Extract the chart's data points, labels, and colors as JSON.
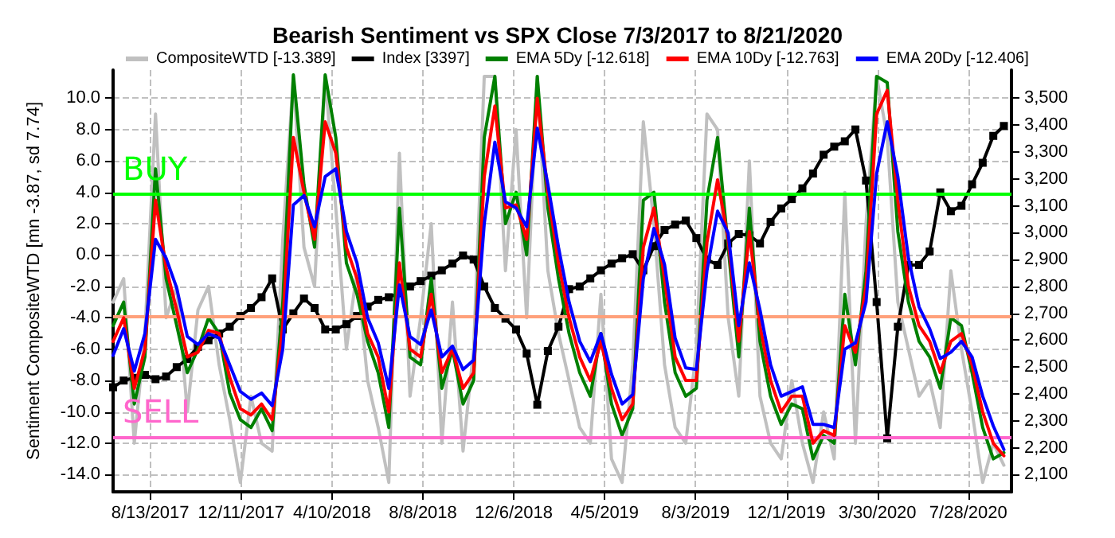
{
  "chart_data": {
    "type": "line",
    "title": "Bearish Sentiment vs SPX Close 7/3/2017 to 8/21/2020",
    "ylabel": "Sentiment CompositeWTD [mn -3.87, sd 7.74]",
    "x": [
      "2017-06-25",
      "2017-07-09",
      "2017-07-23",
      "2017-08-06",
      "2017-08-20",
      "2017-09-03",
      "2017-09-17",
      "2017-10-01",
      "2017-10-15",
      "2017-10-29",
      "2017-11-12",
      "2017-11-26",
      "2017-12-10",
      "2017-12-24",
      "2018-01-07",
      "2018-01-21",
      "2018-02-04",
      "2018-02-18",
      "2018-03-04",
      "2018-03-18",
      "2018-04-01",
      "2018-04-15",
      "2018-04-29",
      "2018-05-13",
      "2018-05-27",
      "2018-06-10",
      "2018-06-24",
      "2018-07-08",
      "2018-07-22",
      "2018-08-05",
      "2018-08-19",
      "2018-09-02",
      "2018-09-16",
      "2018-09-30",
      "2018-10-14",
      "2018-10-28",
      "2018-11-11",
      "2018-11-25",
      "2018-12-09",
      "2018-12-23",
      "2019-01-06",
      "2019-01-20",
      "2019-02-03",
      "2019-02-17",
      "2019-03-03",
      "2019-03-17",
      "2019-03-31",
      "2019-04-14",
      "2019-04-28",
      "2019-05-12",
      "2019-05-26",
      "2019-06-09",
      "2019-06-23",
      "2019-07-07",
      "2019-07-21",
      "2019-08-04",
      "2019-08-18",
      "2019-09-01",
      "2019-09-15",
      "2019-09-29",
      "2019-10-13",
      "2019-10-27",
      "2019-11-10",
      "2019-11-24",
      "2019-12-08",
      "2019-12-22",
      "2020-01-05",
      "2020-01-19",
      "2020-02-02",
      "2020-02-16",
      "2020-03-01",
      "2020-03-15",
      "2020-03-29",
      "2020-04-12",
      "2020-04-26",
      "2020-05-10",
      "2020-05-24",
      "2020-06-07",
      "2020-06-21",
      "2020-07-05",
      "2020-07-19",
      "2020-08-02",
      "2020-08-16",
      "2020-08-30",
      "2020-09-13"
    ],
    "series": [
      {
        "name": "CompositeWTD [-13.389]",
        "color": "#c0c0c0",
        "values": [
          -3.0,
          -1.5,
          -12.0,
          -5.0,
          9.0,
          -4.0,
          -2.0,
          -10.0,
          -3.5,
          -2.0,
          -7.0,
          -10.5,
          -14.5,
          -9.0,
          -12.0,
          -12.5,
          1.0,
          11.4,
          0.5,
          -2.0,
          11.4,
          3.0,
          -6.0,
          -1.0,
          -8.0,
          -11.0,
          -14.5,
          6.5,
          -9.0,
          -4.0,
          2.0,
          -12.0,
          -3.0,
          -12.5,
          -6.0,
          11.4,
          11.4,
          -1.0,
          8.0,
          -4.0,
          11.4,
          -1.0,
          -5.0,
          -8.0,
          -11.0,
          -12.0,
          -2.5,
          -13.0,
          -14.5,
          -7.0,
          8.5,
          2.0,
          -7.0,
          -11.0,
          -12.0,
          -6.0,
          9.0,
          8.0,
          -4.0,
          -9.0,
          6.0,
          -9.0,
          -12.0,
          -13.0,
          -8.0,
          -12.0,
          -14.5,
          -10.0,
          -13.0,
          4.0,
          -12.0,
          2.0,
          11.4,
          7.5,
          -3.0,
          -6.0,
          -9.0,
          -8.0,
          -11.0,
          -1.0,
          -6.0,
          -10.0,
          -14.5,
          -12.0,
          -13.4
        ]
      },
      {
        "name": "Index [3397]",
        "color": "#000000",
        "axis": "y2",
        "marker": "square",
        "values": [
          2425,
          2450,
          2460,
          2471,
          2455,
          2465,
          2500,
          2530,
          2575,
          2600,
          2625,
          2650,
          2690,
          2720,
          2760,
          2830,
          2640,
          2700,
          2755,
          2720,
          2640,
          2640,
          2660,
          2690,
          2725,
          2750,
          2760,
          2775,
          2800,
          2820,
          2840,
          2860,
          2885,
          2915,
          2900,
          2800,
          2720,
          2680,
          2640,
          2550,
          2360,
          2560,
          2650,
          2790,
          2800,
          2830,
          2860,
          2885,
          2905,
          2920,
          2860,
          2950,
          3010,
          3030,
          3045,
          2980,
          2900,
          2880,
          2960,
          2995,
          2990,
          2960,
          3040,
          3090,
          3125,
          3165,
          3220,
          3290,
          3320,
          3340,
          3384,
          3194,
          2742,
          2235,
          2650,
          2880,
          2880,
          2930,
          3150,
          3080,
          3100,
          3180,
          3260,
          3360,
          3397
        ]
      },
      {
        "name": "EMA 5Dy [-12.618]",
        "color": "#008000",
        "values": [
          -4.5,
          -3.0,
          -9.5,
          -6.5,
          5.5,
          -1.5,
          -4.5,
          -7.5,
          -6.0,
          -4.0,
          -5.0,
          -8.8,
          -10.5,
          -11.0,
          -9.8,
          -11.2,
          -3.0,
          11.5,
          4.5,
          0.5,
          11.5,
          7.5,
          -0.5,
          -2.5,
          -5.5,
          -7.5,
          -11.0,
          3.0,
          -6.5,
          -7.0,
          -1.5,
          -8.5,
          -6.0,
          -9.5,
          -8.0,
          7.5,
          11.4,
          2.0,
          4.0,
          0.0,
          11.4,
          3.0,
          -1.5,
          -5.0,
          -7.5,
          -9.0,
          -5.0,
          -9.5,
          -11.5,
          -9.8,
          3.5,
          4.0,
          -3.0,
          -7.5,
          -9.0,
          -8.5,
          3.5,
          7.5,
          0.5,
          -6.5,
          3.0,
          -5.5,
          -9.0,
          -10.8,
          -9.5,
          -9.8,
          -13.0,
          -11.5,
          -12.0,
          -2.5,
          -7.0,
          -1.0,
          11.4,
          11.0,
          1.5,
          -3.0,
          -5.5,
          -6.5,
          -8.5,
          -4.0,
          -4.5,
          -7.5,
          -11.0,
          -13.0,
          -12.6
        ]
      },
      {
        "name": "EMA 10Dy [-12.763]",
        "color": "#ff0000",
        "values": [
          -5.5,
          -4.0,
          -8.5,
          -6.0,
          3.5,
          -0.8,
          -3.5,
          -6.5,
          -6.2,
          -4.8,
          -5.0,
          -7.8,
          -9.8,
          -10.2,
          -9.5,
          -10.5,
          -4.5,
          7.5,
          4.0,
          1.0,
          8.5,
          6.5,
          0.5,
          -1.5,
          -5.0,
          -6.5,
          -10.0,
          -0.5,
          -6.0,
          -6.5,
          -2.5,
          -7.5,
          -6.0,
          -8.5,
          -7.5,
          5.0,
          9.5,
          3.0,
          3.2,
          1.0,
          10.0,
          4.0,
          -0.5,
          -4.0,
          -6.5,
          -8.0,
          -5.5,
          -8.5,
          -10.5,
          -9.5,
          0.5,
          3.0,
          -1.5,
          -6.5,
          -8.0,
          -8.0,
          0.8,
          4.8,
          1.0,
          -5.5,
          1.5,
          -4.5,
          -8.0,
          -10.0,
          -9.0,
          -9.0,
          -12.0,
          -11.2,
          -11.5,
          -4.5,
          -6.2,
          -2.0,
          9.0,
          10.5,
          3.5,
          -2.0,
          -4.5,
          -5.5,
          -7.5,
          -5.5,
          -5.0,
          -7.0,
          -10.0,
          -12.0,
          -12.8
        ]
      },
      {
        "name": "EMA 20Dy [-12.406]",
        "color": "#0000ff",
        "values": [
          -6.4,
          -4.7,
          -7.4,
          -5.0,
          1.0,
          -0.2,
          -2.1,
          -5.2,
          -5.7,
          -5.0,
          -5.3,
          -7.0,
          -8.7,
          -9.2,
          -8.8,
          -9.6,
          -6.0,
          3.2,
          3.8,
          1.8,
          5.0,
          5.5,
          1.5,
          -0.5,
          -4.0,
          -5.6,
          -8.5,
          -1.9,
          -5.2,
          -5.7,
          -3.5,
          -6.5,
          -5.8,
          -7.3,
          -6.7,
          2.0,
          7.2,
          3.4,
          3.0,
          1.8,
          8.1,
          4.5,
          0.5,
          -3.0,
          -5.5,
          -6.8,
          -5.0,
          -7.6,
          -9.5,
          -8.9,
          -1.5,
          1.7,
          -0.6,
          -5.3,
          -7.2,
          -7.3,
          -1.0,
          2.8,
          1.4,
          -4.5,
          -0.5,
          -3.5,
          -7.0,
          -9.0,
          -8.7,
          -8.4,
          -10.8,
          -10.8,
          -11.0,
          -6.0,
          -5.6,
          -3.0,
          5.2,
          8.5,
          5.0,
          -0.2,
          -3.3,
          -4.7,
          -6.6,
          -6.2,
          -5.5,
          -6.5,
          -9.0,
          -10.9,
          -12.4
        ]
      }
    ],
    "ylim": [
      -15.1,
      11.8
    ],
    "yticks": [
      {
        "value": -14,
        "label": "-14.0"
      },
      {
        "value": -12,
        "label": "-12.0"
      },
      {
        "value": -10,
        "label": "-10.0"
      },
      {
        "value": -8,
        "label": "-8.0"
      },
      {
        "value": -6,
        "label": "-6.0"
      },
      {
        "value": -4,
        "label": "-4.0"
      },
      {
        "value": -2,
        "label": "-2.0"
      },
      {
        "value": 0,
        "label": "0.0"
      },
      {
        "value": 2,
        "label": "2.0"
      },
      {
        "value": 4,
        "label": "4.0"
      },
      {
        "value": 6,
        "label": "6.0"
      },
      {
        "value": 8,
        "label": "8.0"
      },
      {
        "value": 10,
        "label": "10.0"
      }
    ],
    "y2lim": [
      2036,
      3605
    ],
    "y2ticks": [
      {
        "value": 2100,
        "label": "2,100"
      },
      {
        "value": 2200,
        "label": "2,200"
      },
      {
        "value": 2300,
        "label": "2,300"
      },
      {
        "value": 2400,
        "label": "2,400"
      },
      {
        "value": 2500,
        "label": "2,500"
      },
      {
        "value": 2600,
        "label": "2,600"
      },
      {
        "value": 2700,
        "label": "2,700"
      },
      {
        "value": 2800,
        "label": "2,800"
      },
      {
        "value": 2900,
        "label": "2,900"
      },
      {
        "value": 3000,
        "label": "3,000"
      },
      {
        "value": 3100,
        "label": "3,100"
      },
      {
        "value": 3200,
        "label": "3,200"
      },
      {
        "value": 3300,
        "label": "3,300"
      },
      {
        "value": 3400,
        "label": "3,400"
      },
      {
        "value": 3500,
        "label": "3,500"
      }
    ],
    "xlim": [
      "2017-06-25",
      "2020-09-23"
    ],
    "xticks": [
      {
        "value": "2017-08-13",
        "label": "8/13/2017"
      },
      {
        "value": "2017-12-11",
        "label": "12/11/2017"
      },
      {
        "value": "2018-04-10",
        "label": "4/10/2018"
      },
      {
        "value": "2018-08-08",
        "label": "8/8/2018"
      },
      {
        "value": "2018-12-06",
        "label": "12/6/2018"
      },
      {
        "value": "2019-04-05",
        "label": "4/5/2019"
      },
      {
        "value": "2019-08-03",
        "label": "8/3/2019"
      },
      {
        "value": "2019-12-01",
        "label": "12/1/2019"
      },
      {
        "value": "2020-03-30",
        "label": "3/30/2020"
      },
      {
        "value": "2020-07-28",
        "label": "7/28/2020"
      }
    ],
    "ref_lines": [
      {
        "axis": "y",
        "value": 3.87,
        "label": "BUY",
        "color": "#00ff00"
      },
      {
        "axis": "y",
        "value": -3.87,
        "label": null,
        "color": "#ffa07a"
      },
      {
        "axis": "y",
        "value": -11.61,
        "label": "SELL",
        "color": "#ff66cc"
      }
    ],
    "grid": true,
    "legend": "top",
    "marker": "none",
    "line_style": "solid"
  }
}
